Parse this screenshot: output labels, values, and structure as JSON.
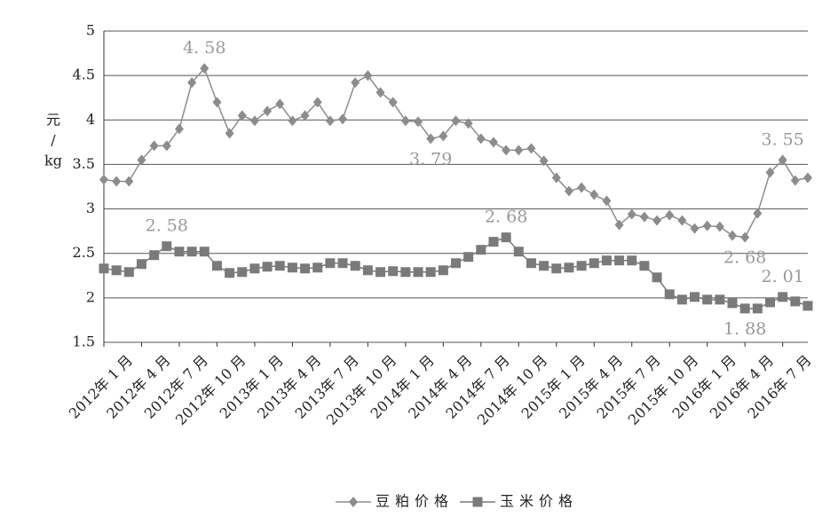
{
  "chart_data": {
    "type": "line",
    "y_label": [
      "元",
      "/",
      "kg"
    ],
    "categories": [
      "2012年 1 月",
      null,
      null,
      "2012年 4 月",
      null,
      null,
      "2012年 7 月",
      null,
      null,
      "2012年 10 月",
      null,
      null,
      "2013年 1 月",
      null,
      null,
      "2013年 4 月",
      null,
      null,
      "2013年 7 月",
      null,
      null,
      "2013年 10 月",
      null,
      null,
      "2014年 1 月",
      null,
      null,
      "2014年 4 月",
      null,
      null,
      "2014年 7 月",
      null,
      null,
      "2014年 10 月",
      null,
      null,
      "2015年 1 月",
      null,
      null,
      "2015年 4 月",
      null,
      null,
      "2015年 7 月",
      null,
      null,
      "2015年 10 月",
      null,
      null,
      "2016年 1 月",
      null,
      null,
      "2016年 4 月",
      null,
      null,
      "2016年 7 月",
      null,
      null
    ],
    "series": [
      {
        "name": "豆粕价格",
        "color": "#8c8c8c",
        "marker": "diamond",
        "values": [
          3.33,
          3.31,
          3.31,
          3.55,
          3.71,
          3.71,
          3.9,
          4.42,
          4.58,
          4.2,
          3.85,
          4.05,
          3.99,
          4.1,
          4.18,
          3.99,
          4.05,
          4.2,
          3.99,
          4.01,
          4.42,
          4.5,
          4.31,
          4.2,
          3.99,
          3.98,
          3.79,
          3.82,
          3.99,
          3.96,
          3.79,
          3.75,
          3.66,
          3.66,
          3.68,
          3.54,
          3.35,
          3.2,
          3.24,
          3.16,
          3.09,
          2.82,
          2.94,
          2.91,
          2.87,
          2.93,
          2.87,
          2.78,
          2.81,
          2.8,
          2.7,
          2.68,
          2.95,
          3.41,
          3.55,
          3.32,
          3.35
        ],
        "value_labels": [
          null,
          null,
          null,
          null,
          null,
          null,
          null,
          null,
          "4. 58",
          null,
          null,
          null,
          null,
          null,
          null,
          null,
          null,
          null,
          null,
          null,
          null,
          null,
          null,
          null,
          null,
          null,
          "3. 79",
          null,
          null,
          null,
          null,
          null,
          null,
          null,
          null,
          null,
          null,
          null,
          null,
          null,
          null,
          null,
          null,
          null,
          null,
          null,
          null,
          null,
          null,
          null,
          null,
          "2. 68",
          null,
          null,
          "3. 55",
          null,
          null
        ]
      },
      {
        "name": "玉米价格",
        "color": "#7a7a7a",
        "marker": "square",
        "values": [
          2.33,
          2.31,
          2.29,
          2.38,
          2.48,
          2.58,
          2.52,
          2.52,
          2.52,
          2.36,
          2.28,
          2.29,
          2.33,
          2.35,
          2.36,
          2.34,
          2.33,
          2.34,
          2.39,
          2.39,
          2.36,
          2.31,
          2.29,
          2.3,
          2.29,
          2.29,
          2.29,
          2.31,
          2.39,
          2.46,
          2.54,
          2.63,
          2.68,
          2.52,
          2.39,
          2.36,
          2.33,
          2.34,
          2.36,
          2.39,
          2.42,
          2.42,
          2.42,
          2.36,
          2.23,
          2.04,
          1.98,
          2.01,
          1.98,
          1.98,
          1.94,
          1.88,
          1.88,
          1.95,
          2.01,
          1.96,
          1.91
        ],
        "value_labels": [
          null,
          null,
          null,
          null,
          null,
          "2. 58",
          null,
          null,
          null,
          null,
          null,
          null,
          null,
          null,
          null,
          null,
          null,
          null,
          null,
          null,
          null,
          null,
          null,
          null,
          null,
          null,
          null,
          null,
          null,
          null,
          null,
          null,
          "2. 68",
          null,
          null,
          null,
          null,
          null,
          null,
          null,
          null,
          null,
          null,
          null,
          null,
          null,
          null,
          null,
          null,
          null,
          null,
          "1. 88",
          null,
          null,
          "2. 01",
          null,
          null
        ]
      }
    ],
    "ylim": [
      1.5,
      5
    ],
    "yticks": [
      1.5,
      2,
      2.5,
      3,
      3.5,
      4,
      4.5,
      5
    ],
    "grid": true,
    "legend": "bottom"
  }
}
